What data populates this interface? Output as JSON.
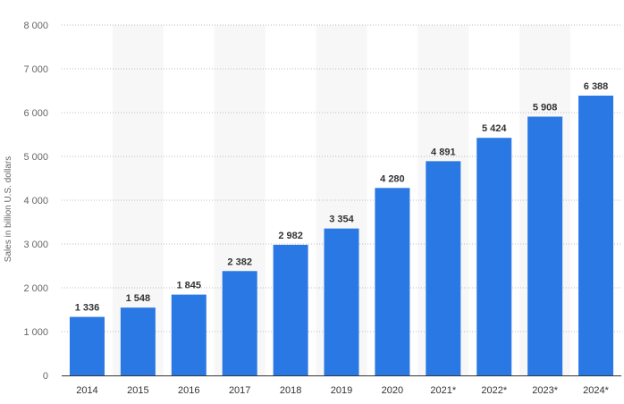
{
  "chart_data": {
    "type": "bar",
    "title": "",
    "xlabel": "",
    "ylabel": "Sales in billion U.S. dollars",
    "ylim": [
      0,
      8000
    ],
    "yticks": [
      0,
      1000,
      2000,
      3000,
      4000,
      5000,
      6000,
      7000,
      8000
    ],
    "ytick_labels": [
      "0",
      "1 000",
      "2 000",
      "3 000",
      "4 000",
      "5 000",
      "6 000",
      "7 000",
      "8 000"
    ],
    "categories": [
      "2014",
      "2015",
      "2016",
      "2017",
      "2018",
      "2019",
      "2020",
      "2021*",
      "2022*",
      "2023*",
      "2024*"
    ],
    "values": [
      1336,
      1548,
      1845,
      2382,
      2982,
      3354,
      4280,
      4891,
      5424,
      5908,
      6388
    ],
    "value_labels": [
      "1 336",
      "1 548",
      "1 845",
      "2 382",
      "2 982",
      "3 354",
      "4 280",
      "4 891",
      "5 424",
      "5 908",
      "6 388"
    ],
    "grid": true,
    "alternating_band_shading": true,
    "colors": {
      "bar": "#2a78e4",
      "grid": "#bdbdbd",
      "band": "#f7f7f7",
      "axis": "#333333"
    }
  }
}
